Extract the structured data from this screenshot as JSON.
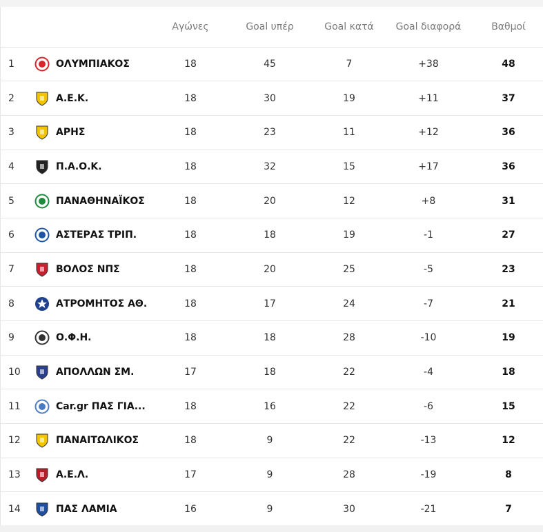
{
  "columns": {
    "games": "Αγώνες",
    "goals_for": "Goal υπέρ",
    "goals_against": "Goal κατά",
    "goal_diff": "Goal διαφορά",
    "points": "Βαθμοί"
  },
  "rows": [
    {
      "pos": "1",
      "team": "ΟΛΥΜΠΙΑΚΟΣ",
      "games": "18",
      "gf": "45",
      "ga": "7",
      "gd": "+38",
      "pts": "48",
      "icon": "olympiacos-crest-icon",
      "color": "#d7262c"
    },
    {
      "pos": "2",
      "team": "Α.Ε.Κ.",
      "games": "18",
      "gf": "30",
      "ga": "19",
      "gd": "+11",
      "pts": "37",
      "icon": "aek-crest-icon",
      "color": "#f3c200"
    },
    {
      "pos": "3",
      "team": "ΑΡΗΣ",
      "games": "18",
      "gf": "23",
      "ga": "11",
      "gd": "+12",
      "pts": "36",
      "icon": "aris-crest-icon",
      "color": "#f0c400"
    },
    {
      "pos": "4",
      "team": "Π.Α.Ο.Κ.",
      "games": "18",
      "gf": "32",
      "ga": "15",
      "gd": "+17",
      "pts": "36",
      "icon": "paok-crest-icon",
      "color": "#222222"
    },
    {
      "pos": "5",
      "team": "ΠΑΝΑΘΗΝΑΪΚΟΣ",
      "games": "18",
      "gf": "20",
      "ga": "12",
      "gd": "+8",
      "pts": "31",
      "icon": "panathinaikos-crest-icon",
      "color": "#1f8a3c"
    },
    {
      "pos": "6",
      "team": "ΑΣΤΕΡΑΣ ΤΡΙΠ.",
      "games": "18",
      "gf": "18",
      "ga": "19",
      "gd": "-1",
      "pts": "27",
      "icon": "asteras-crest-icon",
      "color": "#1e55a3"
    },
    {
      "pos": "7",
      "team": "ΒΟΛΟΣ ΝΠΣ",
      "games": "18",
      "gf": "20",
      "ga": "25",
      "gd": "-5",
      "pts": "23",
      "icon": "volos-crest-icon",
      "color": "#c8202f"
    },
    {
      "pos": "8",
      "team": "ΑΤΡΟΜΗΤΟΣ ΑΘ.",
      "games": "18",
      "gf": "17",
      "ga": "24",
      "gd": "-7",
      "pts": "21",
      "icon": "atromitos-crest-icon",
      "color": "#1f3f8f"
    },
    {
      "pos": "9",
      "team": "Ο.Φ.Η.",
      "games": "18",
      "gf": "18",
      "ga": "28",
      "gd": "-10",
      "pts": "19",
      "icon": "ofi-crest-icon",
      "color": "#333333"
    },
    {
      "pos": "10",
      "team": "ΑΠΟΛΛΩΝ ΣΜ.",
      "games": "17",
      "gf": "18",
      "ga": "22",
      "gd": "-4",
      "pts": "18",
      "icon": "apollon-crest-icon",
      "color": "#2b3f8f"
    },
    {
      "pos": "11",
      "team": "Car.gr ΠΑΣ ΓΙΑ...",
      "games": "18",
      "gf": "16",
      "ga": "22",
      "gd": "-6",
      "pts": "15",
      "icon": "pas-giannina-crest-icon",
      "color": "#4a7cc4"
    },
    {
      "pos": "12",
      "team": "ΠΑΝΑΙΤΩΛΙΚΟΣ",
      "games": "18",
      "gf": "9",
      "ga": "22",
      "gd": "-13",
      "pts": "12",
      "icon": "panetolikos-crest-icon",
      "color": "#f2c500"
    },
    {
      "pos": "13",
      "team": "Α.Ε.Λ.",
      "games": "17",
      "gf": "9",
      "ga": "28",
      "gd": "-19",
      "pts": "8",
      "icon": "ael-crest-icon",
      "color": "#b51e2b"
    },
    {
      "pos": "14",
      "team": "ΠΑΣ ΛΑΜΙΑ",
      "games": "16",
      "gf": "9",
      "ga": "30",
      "gd": "-21",
      "pts": "7",
      "icon": "lamia-crest-icon",
      "color": "#1e4fa0"
    }
  ]
}
